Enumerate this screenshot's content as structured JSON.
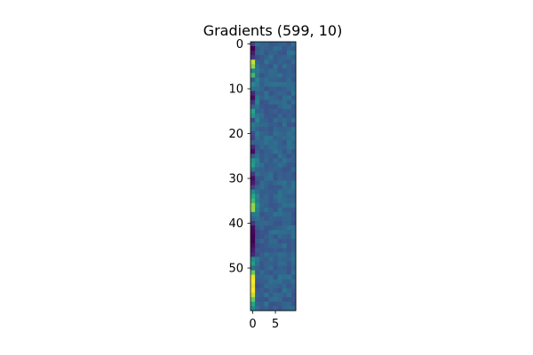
{
  "chart_data": {
    "type": "heatmap",
    "title": "Gradients (599, 10)",
    "xlabel": "",
    "ylabel": "",
    "n_rows": 60,
    "n_cols": 10,
    "x_ticks": [
      0,
      5
    ],
    "y_ticks": [
      0,
      10,
      20,
      30,
      40,
      50
    ],
    "colormap": "viridis",
    "grid": false,
    "colorbar": false,
    "col0_values": [
      0.25,
      0.0,
      0.1,
      0.2,
      0.95,
      0.9,
      0.55,
      0.8,
      0.35,
      0.6,
      0.45,
      0.15,
      0.05,
      0.2,
      0.4,
      0.75,
      0.65,
      0.3,
      0.5,
      0.45,
      0.3,
      0.25,
      0.4,
      0.15,
      0.05,
      0.35,
      0.65,
      0.7,
      0.5,
      0.2,
      0.05,
      0.1,
      0.25,
      0.6,
      0.75,
      0.8,
      0.9,
      0.9,
      0.5,
      0.4,
      0.2,
      0.05,
      0.02,
      0.0,
      0.0,
      0.05,
      0.1,
      0.15,
      0.6,
      0.7,
      0.45,
      0.85,
      0.98,
      1.0,
      0.98,
      1.0,
      0.95,
      0.85,
      0.75,
      0.6
    ],
    "col1_values": [
      0.45,
      0.35,
      0.4,
      0.3,
      0.4,
      0.45,
      0.5,
      0.45,
      0.55,
      0.5,
      0.45,
      0.4,
      0.5,
      0.55,
      0.45,
      0.4,
      0.5,
      0.55,
      0.45,
      0.4,
      0.5,
      0.45,
      0.4,
      0.35,
      0.4,
      0.45,
      0.55,
      0.5,
      0.4,
      0.45,
      0.35,
      0.3,
      0.4,
      0.45,
      0.55,
      0.5,
      0.6,
      0.55,
      0.5,
      0.45,
      0.4,
      0.35,
      0.3,
      0.3,
      0.35,
      0.3,
      0.35,
      0.3,
      0.5,
      0.45,
      0.4,
      0.35,
      0.4,
      0.35,
      0.3,
      0.35,
      0.4,
      0.35,
      0.4,
      0.45
    ],
    "other_cols_mean": 0.4,
    "other_cols_spread": 0.08
  }
}
